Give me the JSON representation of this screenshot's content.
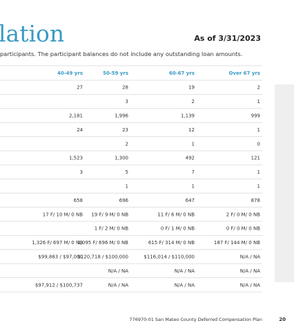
{
  "header": {
    "title": "lation",
    "date": "As of 3/31/2023",
    "note": "participants. The participant balances do not include any outstanding loan amounts."
  },
  "table": {
    "columns": [
      "40-49 yrs",
      "50-59 yrs",
      "60-67 yrs",
      "Over 67 yrs"
    ],
    "rows": [
      [
        "27",
        "28",
        "19",
        "2"
      ],
      [
        null,
        "3",
        "2",
        "1"
      ],
      [
        "2,181",
        "1,996",
        "1,139",
        "999"
      ],
      [
        "24",
        "23",
        "12",
        "1"
      ],
      [
        null,
        "2",
        "1",
        "0"
      ],
      [
        "1,523",
        "1,300",
        "492",
        "121"
      ],
      [
        "3",
        "5",
        "7",
        "1"
      ],
      [
        null,
        "1",
        "1",
        "1"
      ],
      [
        "658",
        "696",
        "647",
        "878"
      ],
      [
        "17 F/ 10 M/ 0 NB",
        "19 F/ 9 M/ 0 NB",
        "11 F/ 6 M/ 0 NB",
        "2 F/ 0 M/ 0 NB"
      ],
      [
        null,
        "1 F/ 2 M/ 0 NB",
        "0 F/ 1 M/ 0 NB",
        "0 F/ 0 M/ 0 NB"
      ],
      [
        "1,326 F/ 697 M/ 0 NB",
        "1,095 F/ 696 M/ 0 NB",
        "615 F/ 314 M/ 0 NB",
        "187 F/ 144 M/ 0 NB"
      ],
      [
        "$99,863 / $97,000",
        "$120,718 / $100,000",
        "$116,014 / $110,000",
        "N/A / NA"
      ],
      [
        null,
        "N/A / NA",
        "N/A / NA",
        "N/A / NA"
      ],
      [
        "$97,912 / $100,737",
        "N/A / NA",
        "N/A / NA",
        "N/A / NA"
      ]
    ]
  },
  "footer": {
    "plan": "776970-01 San Mateo County Deferred Compensation Plan",
    "page": "20"
  }
}
